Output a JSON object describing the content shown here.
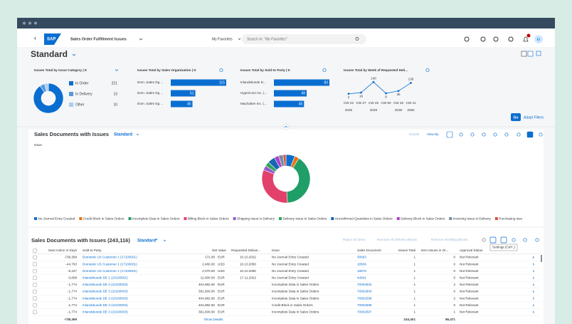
{
  "shell": {
    "app_title": "Sales Order Fulfillment Issues",
    "favorites": "My Favorites",
    "search_placeholder": "Search In: \"My Favorites\"",
    "avatar": "EI"
  },
  "header": {
    "variant": "Standard",
    "go": "Go",
    "adapt_filters": "Adapt Filters"
  },
  "chart_data": [
    {
      "type": "pie",
      "donut": true,
      "title": "Issues Total by Issue Category | K",
      "categories": [
        "In Order",
        "In Delivery",
        "Other"
      ],
      "values": [
        221,
        13,
        10
      ],
      "colors": [
        "#0a6ed1",
        "#5899da",
        "#a9cdf2"
      ]
    },
    {
      "type": "bar",
      "orientation": "horizontal",
      "title": "Issues Total by Sales Organization | K",
      "categories": [
        "Dom. Sales Og ...",
        "Dom. Sales Og ...",
        "Dom. Sales Og ..."
      ],
      "values": [
        115,
        51,
        45
      ],
      "color": "#0a6ed1",
      "xlim": [
        0,
        115
      ]
    },
    {
      "type": "bar",
      "orientation": "horizontal",
      "title": "Issues Total by Sold-to Party | K",
      "categories": [
        "Inlandskunde D...",
        "HyperCom Inc. (...",
        "Machatten Inc. (..."
      ],
      "values": [
        83,
        49,
        45
      ],
      "color": "#0a6ed1",
      "xlim": [
        0,
        83
      ]
    },
    {
      "type": "line",
      "title": "Issues Total by Week of Requested Deli...",
      "categories": [
        "CW 22",
        "CW 27",
        "CW 45",
        "CW 50",
        "CW 45",
        "CW 41"
      ],
      "category_sublabels": [
        "2025",
        null,
        "2029",
        null,
        "2039",
        "2050"
      ],
      "values": [
        2,
        16,
        140,
        8,
        35,
        130
      ],
      "color": "#0a6ed1",
      "ylim": [
        0,
        150
      ]
    },
    {
      "type": "pie",
      "donut": true,
      "label": "Issue",
      "series": [
        {
          "name": "No Journal Entry Created",
          "color": "#0a6ed1",
          "values": [
            6
          ]
        },
        {
          "name": "Credit Block in Sales Orders",
          "color": "#e9730c",
          "values": [
            3
          ]
        },
        {
          "name": "Incomplete Data in Sales Orders",
          "color": "#1f9e68",
          "values": [
            40
          ]
        },
        {
          "name": "Billing Block in Sales Orders",
          "color": "#e2416b",
          "values": [
            32
          ]
        },
        {
          "name": "Shipping Issue in Delivery",
          "color": "#925ace",
          "values": [
            3
          ]
        },
        {
          "name": "Delivery Issue in Sales Orders",
          "color": "#2fa35c",
          "values": [
            3
          ]
        },
        {
          "name": "Unconfirmed Quantities in Sales Orders",
          "color": "#1866b4",
          "values": [
            5
          ]
        },
        {
          "name": "Delivery Block in Sales Orders",
          "color": "#a93ec8",
          "values": [
            3
          ]
        },
        {
          "name": "Invoicing Issue in Delivery",
          "color": "#758ca4",
          "values": [
            3
          ]
        },
        {
          "name": "Purchasing Issu",
          "color": "#d8543e",
          "values": [
            2
          ]
        }
      ]
    }
  ],
  "analytics": {
    "title": "Sales Documents with Issues",
    "variant": "Standard",
    "details": "Details",
    "view_by": "View By"
  },
  "table": {
    "title": "Sales Documents with Issues (243,116)",
    "variant": "Standard*",
    "actions": [
      "Reject All Items",
      "Remove All Delivery Blocks",
      "Remove All Billing Blocks"
    ],
    "tooltip": "Settings (Ctrl+,)",
    "columns": [
      "Next Action in Days",
      "Sold-to Party",
      "Net Value",
      "Requested Deliver...",
      "Issue",
      "Sales Document",
      "Issues Total",
      "Item Issues in Or...",
      "Approval Status"
    ],
    "rows": [
      [
        "-738,369",
        "Domestic US Customer 1 (17100001)",
        "172.06",
        "EUR",
        "10.10.2022",
        "No Journal Entry Created",
        "30683",
        "1",
        "0",
        "Not Relevant"
      ],
      [
        "-44,763",
        "Domestic US Customer 1 (17100001)",
        "2,460.00",
        "USD",
        "10.10.2050",
        "No Journal Entry Created",
        "18509",
        "1",
        "0",
        "Not Relevant"
      ],
      [
        "-8,247",
        "Domestic US Customer 1 (17100001)",
        "2,070.00",
        "USD",
        "10.10.2050",
        "No Journal Entry Created",
        "18678",
        "1",
        "0",
        "Not Relevant"
      ],
      [
        "-3,808",
        "Inlandskunde DE 1 (10100001)",
        "12,000.00",
        "EUR",
        "17.11.2022",
        "No Journal Entry Created",
        "44941",
        "1",
        "0",
        "Not Relevant"
      ],
      [
        "-1,774",
        "Inlandskunde DE 3 (10100003)",
        "404,982.60",
        "EUR",
        null,
        "Incomplete Data in Sales Orders",
        "70002602",
        "1",
        "2",
        "Not Relevant"
      ],
      [
        "-1,774",
        "Inlandskunde DE 3 (10100003)",
        "391,600.00",
        "EUR",
        null,
        "Incomplete Data in Sales Orders",
        "70002600",
        "1",
        "0",
        "Not Relevant"
      ],
      [
        "-1,774",
        "Inlandskunde DE 3 (10100003)",
        "404,982.60",
        "EUR",
        null,
        "Incomplete Data in Sales Orders",
        "70002598",
        "1",
        "2",
        "Not Relevant"
      ],
      [
        "-1,774",
        "Inlandskunde DE 3 (10100003)",
        "404,982.60",
        "EUR",
        null,
        "Credit Block in Sales Orders",
        "70002598",
        "1",
        "0",
        "Not Relevant"
      ],
      [
        "-1,774",
        "Inlandskunde DE 3 (10100003)",
        "391,600.00",
        "EUR",
        null,
        "Incomplete Data in Sales Orders",
        "70002597",
        "1",
        "1",
        "Not Relevant"
      ]
    ],
    "footer": {
      "next_action": "-738,369",
      "link": "Show Details",
      "issues_total": "244,401",
      "item_issues": "86,471"
    }
  }
}
